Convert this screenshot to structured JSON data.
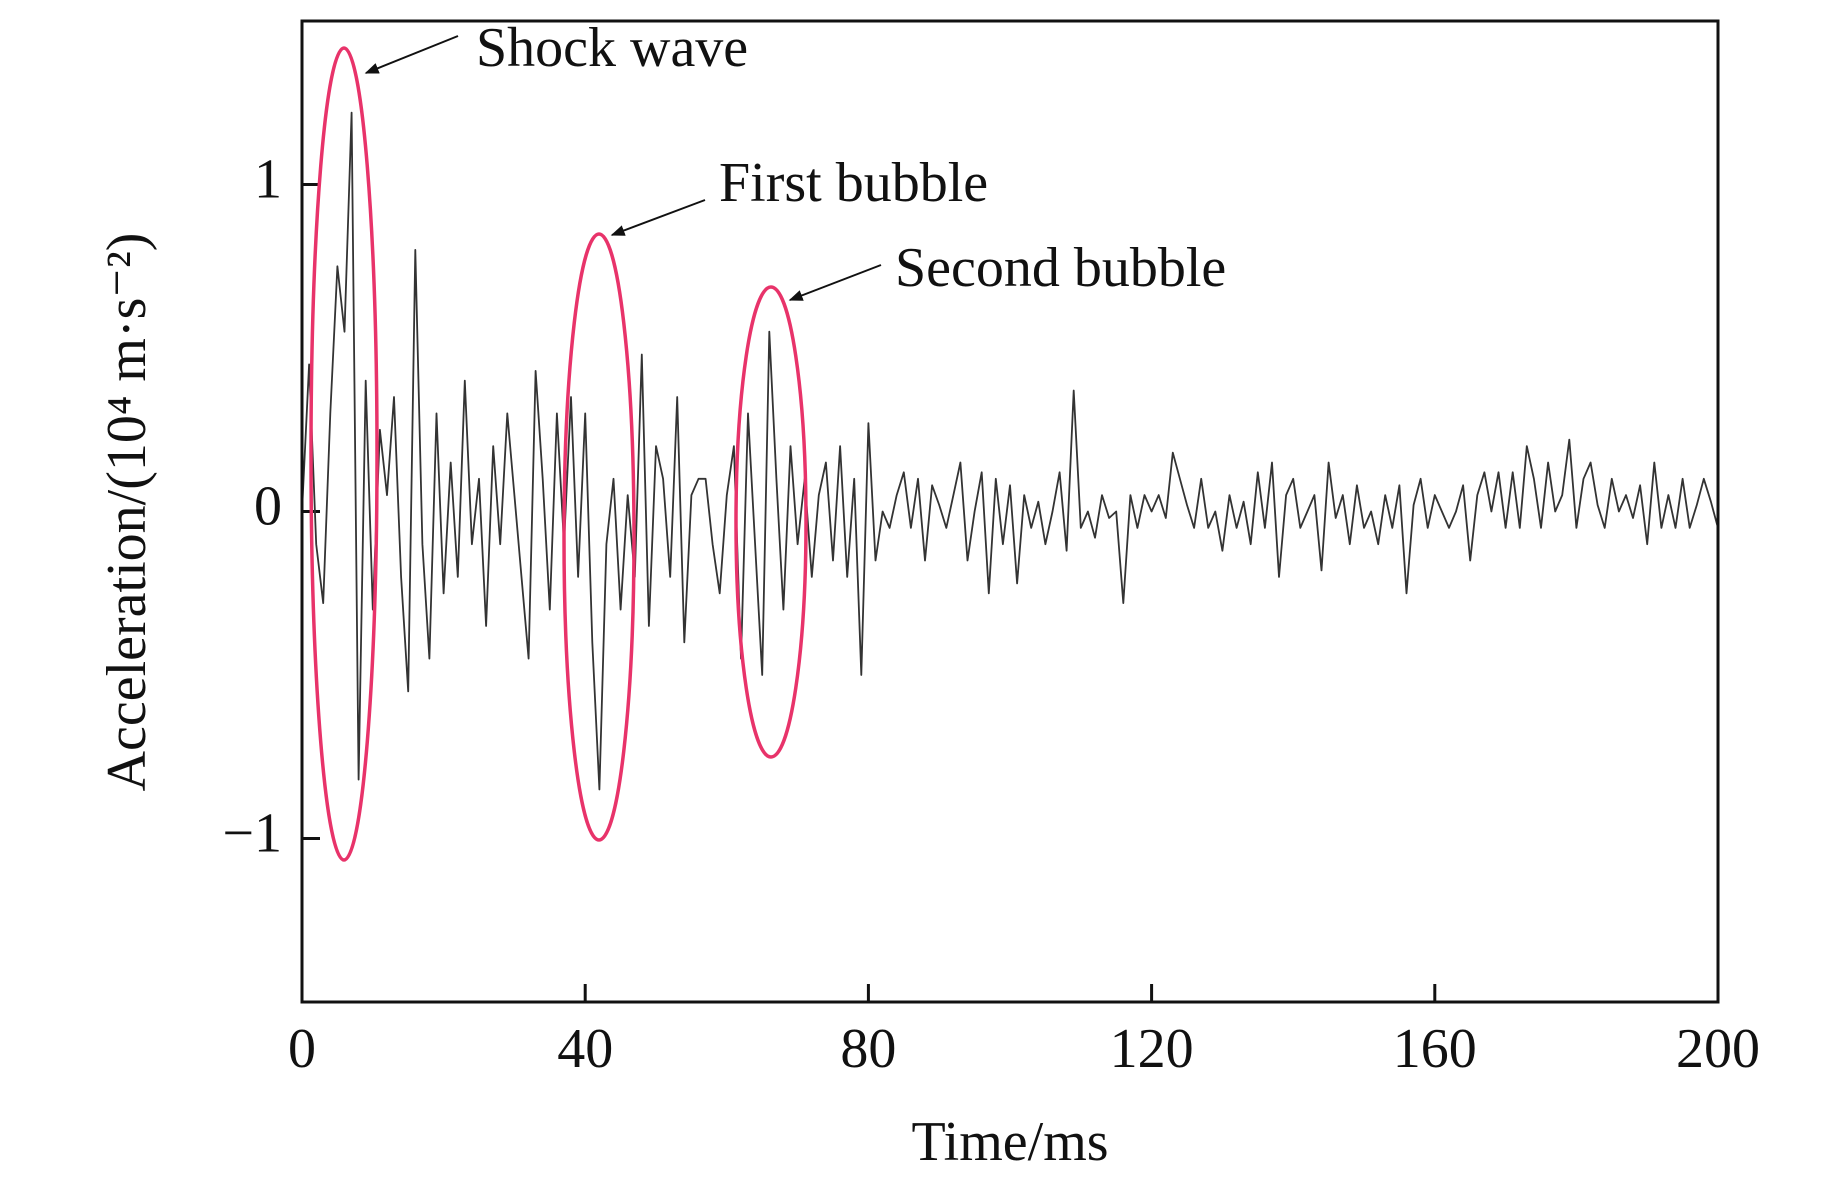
{
  "chart_data": {
    "type": "line",
    "xlabel": "Time/ms",
    "ylabel": "Acceleration/(10⁴ m·s⁻²)",
    "annotations": [
      "Shock wave",
      "First bubble",
      "Second bubble"
    ],
    "xlim": [
      0,
      200
    ],
    "ylim": [
      -1.5,
      1.5
    ],
    "xticks": [
      0,
      40,
      80,
      120,
      160,
      200
    ],
    "yticks": [
      {
        "value": -1,
        "label": "−1"
      },
      0,
      1
    ],
    "grid": false,
    "series": [
      {
        "color": "#333333",
        "x": [
          0,
          1,
          2,
          3,
          4,
          5,
          6,
          7,
          8,
          9,
          10,
          11,
          12,
          13,
          14,
          15,
          16,
          17,
          18,
          19,
          20,
          21,
          22,
          23,
          24,
          25,
          26,
          27,
          28,
          29,
          30,
          31,
          32,
          33,
          34,
          35,
          36,
          37,
          38,
          39,
          40,
          41,
          42,
          43,
          44,
          45,
          46,
          47,
          48,
          49,
          50,
          51,
          52,
          53,
          54,
          55,
          56,
          57,
          58,
          59,
          60,
          61,
          62,
          63,
          64,
          65,
          66,
          67,
          68,
          69,
          70,
          71,
          72,
          73,
          74,
          75,
          76,
          77,
          78,
          79,
          80,
          81,
          82,
          83,
          84,
          85,
          86,
          87,
          88,
          89,
          90,
          91,
          92,
          93,
          94,
          95,
          96,
          97,
          98,
          99,
          100,
          101,
          102,
          103,
          104,
          105,
          106,
          107,
          108,
          109,
          110,
          111,
          112,
          113,
          114,
          115,
          116,
          117,
          118,
          119,
          120,
          121,
          122,
          123,
          124,
          125,
          126,
          127,
          128,
          129,
          130,
          131,
          132,
          133,
          134,
          135,
          136,
          137,
          138,
          139,
          140,
          141,
          142,
          143,
          144,
          145,
          146,
          147,
          148,
          149,
          150,
          151,
          152,
          153,
          154,
          155,
          156,
          157,
          158,
          159,
          160,
          161,
          162,
          163,
          164,
          165,
          166,
          167,
          168,
          169,
          170,
          171,
          172,
          173,
          174,
          175,
          176,
          177,
          178,
          179,
          180,
          181,
          182,
          183,
          184,
          185,
          186,
          187,
          188,
          189,
          190,
          191,
          192,
          193,
          194,
          195,
          196,
          197,
          198,
          199,
          200
        ],
        "values": [
          0,
          0.45,
          -0.1,
          -0.28,
          0.3,
          0.75,
          0.55,
          1.22,
          -0.82,
          0.4,
          -0.3,
          0.25,
          0.05,
          0.35,
          -0.2,
          -0.55,
          0.8,
          -0.1,
          -0.45,
          0.3,
          -0.25,
          0.15,
          -0.2,
          0.4,
          -0.1,
          0.1,
          -0.35,
          0.2,
          -0.1,
          0.3,
          0.05,
          -0.2,
          -0.45,
          0.43,
          0.1,
          -0.3,
          0.3,
          -0.1,
          0.35,
          -0.2,
          0.3,
          -0.4,
          -0.85,
          -0.1,
          0.1,
          -0.3,
          0.05,
          -0.2,
          0.48,
          -0.35,
          0.2,
          0.1,
          -0.2,
          0.35,
          -0.4,
          0.05,
          0.1,
          0.1,
          -0.1,
          -0.25,
          0.05,
          0.2,
          -0.45,
          0.3,
          -0.1,
          -0.5,
          0.55,
          0.1,
          -0.3,
          0.2,
          -0.1,
          0.1,
          -0.2,
          0.05,
          0.15,
          -0.15,
          0.2,
          -0.2,
          0.1,
          -0.5,
          0.27,
          -0.15,
          0,
          -0.05,
          0.05,
          0.12,
          -0.05,
          0.1,
          -0.15,
          0.08,
          0.02,
          -0.05,
          0.05,
          0.15,
          -0.15,
          0,
          0.12,
          -0.25,
          0.1,
          -0.1,
          0.08,
          -0.22,
          0.05,
          -0.05,
          0.03,
          -0.1,
          0,
          0.12,
          -0.12,
          0.37,
          -0.05,
          0,
          -0.08,
          0.05,
          -0.02,
          0,
          -0.28,
          0.05,
          -0.05,
          0.05,
          0,
          0.05,
          -0.02,
          0.18,
          0.1,
          0.02,
          -0.05,
          0.1,
          -0.05,
          0,
          -0.12,
          0.05,
          -0.05,
          0.03,
          -0.1,
          0.12,
          -0.05,
          0.15,
          -0.2,
          0.05,
          0.1,
          -0.05,
          0,
          0.05,
          -0.18,
          0.15,
          -0.02,
          0.05,
          -0.1,
          0.08,
          -0.05,
          0,
          -0.1,
          0.05,
          -0.05,
          0.08,
          -0.25,
          0.02,
          0.1,
          -0.05,
          0.05,
          0,
          -0.05,
          0,
          0.08,
          -0.15,
          0.05,
          0.12,
          0,
          0.12,
          -0.05,
          0.12,
          -0.05,
          0.2,
          0.1,
          -0.05,
          0.15,
          0,
          0.05,
          0.22,
          -0.05,
          0.1,
          0.15,
          0.02,
          -0.05,
          0.1,
          0,
          0.05,
          -0.02,
          0.08,
          -0.1,
          0.15,
          -0.05,
          0.05,
          -0.05,
          0.1,
          -0.05,
          0.02,
          0.1,
          0.03,
          -0.05
        ]
      }
    ]
  }
}
